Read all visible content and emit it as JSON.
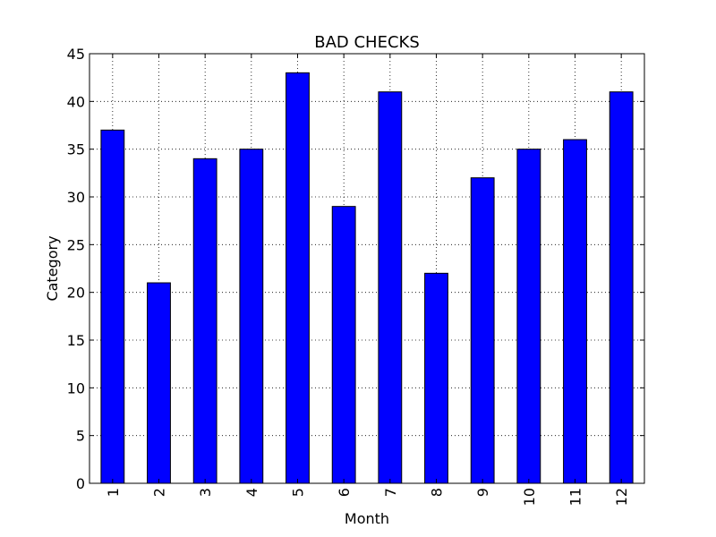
{
  "chart_data": {
    "type": "bar",
    "title": "BAD CHECKS",
    "xlabel": "Month",
    "ylabel": "Category",
    "categories": [
      "1",
      "2",
      "3",
      "4",
      "5",
      "6",
      "7",
      "8",
      "9",
      "10",
      "11",
      "12"
    ],
    "values": [
      37,
      21,
      34,
      35,
      43,
      29,
      41,
      22,
      32,
      35,
      36,
      41
    ],
    "ylim": [
      0,
      45
    ],
    "yticks": [
      0,
      5,
      10,
      15,
      20,
      25,
      30,
      35,
      40,
      45
    ],
    "grid": true,
    "colors": {
      "bar": "#0000ff",
      "edge": "#000000"
    }
  }
}
